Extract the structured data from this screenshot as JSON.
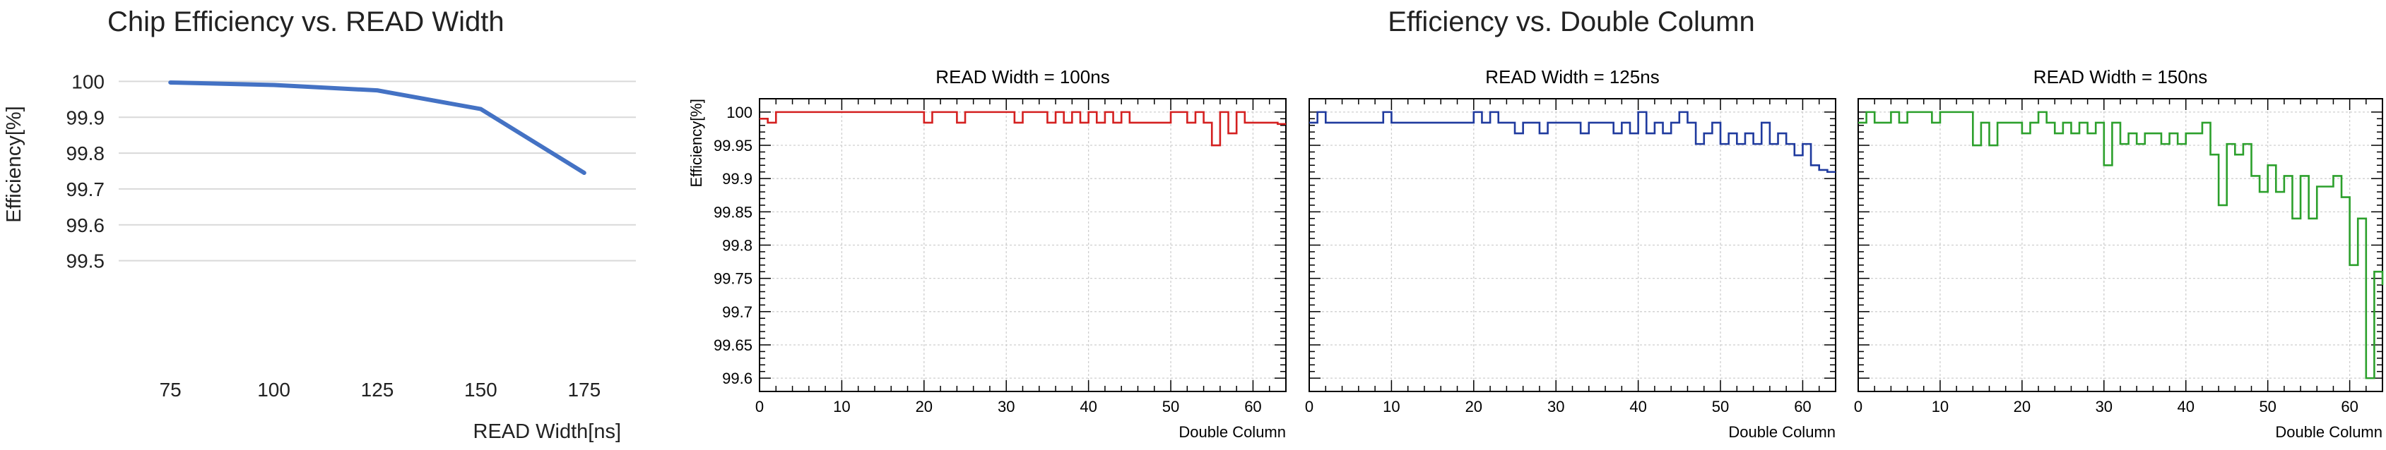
{
  "chart_data": [
    {
      "type": "line",
      "title": "Chip Efficiency vs. READ Width",
      "xlabel": "READ Width[ns]",
      "ylabel": "Efficiency[%]",
      "categories": [
        "75",
        "100",
        "125",
        "150",
        "175"
      ],
      "x_ticks": [
        "75",
        "100",
        "125",
        "150",
        "175"
      ],
      "y_ticks": [
        "100",
        "99.9",
        "99.8",
        "99.7",
        "99.6",
        "99.5"
      ],
      "ylim": [
        99.45,
        100.05
      ],
      "values": [
        99.997,
        99.99,
        99.975,
        99.923,
        99.745
      ],
      "grid": "horizontal",
      "color": "#4472c4"
    },
    {
      "type": "step",
      "title": "READ Width = 100ns",
      "xlabel": "Double Column",
      "ylabel": "Efficiency[%]",
      "xlim": [
        0,
        64
      ],
      "ylim": [
        99.58,
        100.02
      ],
      "x_ticks": [
        "0",
        "10",
        "20",
        "30",
        "40",
        "50",
        "60"
      ],
      "y_ticks": [
        "100",
        "99.95",
        "99.9",
        "99.85",
        "99.8",
        "99.75",
        "99.7",
        "99.65",
        "99.6"
      ],
      "color": "#d42020",
      "values": [
        99.99,
        99.984,
        100,
        100,
        100,
        100,
        100,
        100,
        100,
        100,
        100,
        100,
        100,
        100,
        100,
        100,
        100,
        100,
        100,
        100,
        99.984,
        100,
        100,
        100,
        99.984,
        100,
        100,
        100,
        100,
        100,
        100,
        99.984,
        100,
        100,
        100,
        99.984,
        100,
        99.984,
        100,
        99.984,
        100,
        99.984,
        100,
        99.984,
        100,
        99.984,
        99.984,
        99.984,
        99.984,
        99.984,
        100,
        100,
        99.984,
        100,
        99.984,
        99.95,
        100,
        99.968,
        100,
        99.984,
        99.984,
        99.984,
        99.984,
        99.982
      ]
    },
    {
      "type": "step",
      "title": "READ Width = 125ns",
      "xlabel": "Double Column",
      "xlim": [
        0,
        64
      ],
      "ylim": [
        99.58,
        100.02
      ],
      "x_ticks": [
        "0",
        "10",
        "20",
        "30",
        "40",
        "50",
        "60"
      ],
      "y_ticks": [
        "100",
        "99.95",
        "99.9",
        "99.85",
        "99.8",
        "99.75",
        "99.7",
        "99.65",
        "99.6"
      ],
      "color": "#1f3a9e",
      "values": [
        99.984,
        100,
        99.984,
        99.984,
        99.984,
        99.984,
        99.984,
        99.984,
        99.984,
        100,
        99.984,
        99.984,
        99.984,
        99.984,
        99.984,
        99.984,
        99.984,
        99.984,
        99.984,
        99.984,
        100,
        99.984,
        100,
        99.984,
        99.984,
        99.968,
        99.984,
        99.984,
        99.968,
        99.984,
        99.984,
        99.984,
        99.984,
        99.968,
        99.984,
        99.984,
        99.984,
        99.968,
        99.984,
        99.968,
        100,
        99.968,
        99.984,
        99.968,
        99.984,
        100,
        99.984,
        99.952,
        99.968,
        99.984,
        99.952,
        99.968,
        99.952,
        99.968,
        99.952,
        99.984,
        99.952,
        99.968,
        99.952,
        99.935,
        99.952,
        99.92,
        99.913,
        99.91
      ]
    },
    {
      "type": "step",
      "title": "READ Width = 150ns",
      "xlabel": "Double Column",
      "xlim": [
        0,
        64
      ],
      "ylim": [
        99.58,
        100.02
      ],
      "x_ticks": [
        "0",
        "10",
        "20",
        "30",
        "40",
        "50",
        "60"
      ],
      "y_ticks": [
        "100",
        "99.95",
        "99.9",
        "99.85",
        "99.8",
        "99.75",
        "99.7",
        "99.65",
        "99.6"
      ],
      "color": "#2ca02c",
      "values": [
        99.984,
        100,
        99.984,
        99.984,
        100,
        99.984,
        100,
        100,
        100,
        99.984,
        100,
        100,
        100,
        100,
        99.95,
        99.984,
        99.95,
        99.984,
        99.984,
        99.984,
        99.968,
        99.984,
        100,
        99.984,
        99.968,
        99.984,
        99.968,
        99.984,
        99.968,
        99.984,
        99.92,
        99.984,
        99.952,
        99.968,
        99.952,
        99.968,
        99.968,
        99.952,
        99.968,
        99.952,
        99.968,
        99.968,
        99.984,
        99.936,
        99.86,
        99.952,
        99.936,
        99.952,
        99.904,
        99.88,
        99.92,
        99.88,
        99.904,
        99.84,
        99.904,
        99.84,
        99.888,
        99.888,
        99.904,
        99.872,
        99.77,
        99.84,
        99.6,
        99.76,
        99.74
      ]
    }
  ],
  "header": {
    "title": "Efficiency vs. Double Column"
  }
}
